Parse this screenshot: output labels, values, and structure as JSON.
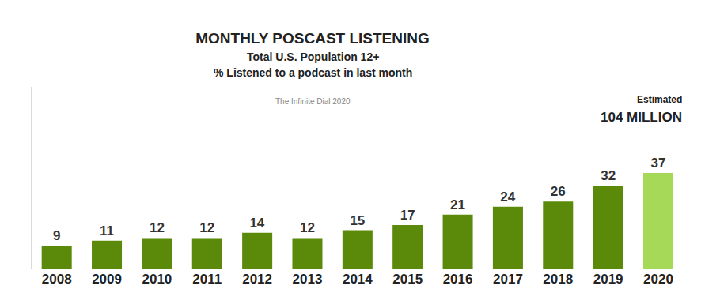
{
  "chart_data": {
    "type": "bar",
    "title": "MONTHLY POSCAST LISTENING",
    "subtitle": [
      "Total U.S. Population 12+",
      "% Listened to a podcast in last month"
    ],
    "source": "The Infinite Dial 2020",
    "annotations": [
      {
        "text": "Estimated",
        "category": "2020"
      },
      {
        "text": "104 MILLION",
        "category": "2020"
      }
    ],
    "categories": [
      "2008",
      "2009",
      "2010",
      "2011",
      "2012",
      "2013",
      "2014",
      "2015",
      "2016",
      "2017",
      "2018",
      "2019",
      "2020"
    ],
    "values": [
      9,
      11,
      12,
      12,
      14,
      12,
      15,
      17,
      21,
      24,
      26,
      32,
      37
    ],
    "colors": [
      "#5b8a0b",
      "#5b8a0b",
      "#5b8a0b",
      "#5b8a0b",
      "#5b8a0b",
      "#5b8a0b",
      "#5b8a0b",
      "#5b8a0b",
      "#5b8a0b",
      "#5b8a0b",
      "#5b8a0b",
      "#5b8a0b",
      "#a6d957"
    ],
    "ylim": [
      0,
      70
    ],
    "data_labels": true,
    "tick_labels": "x",
    "grid": false
  }
}
